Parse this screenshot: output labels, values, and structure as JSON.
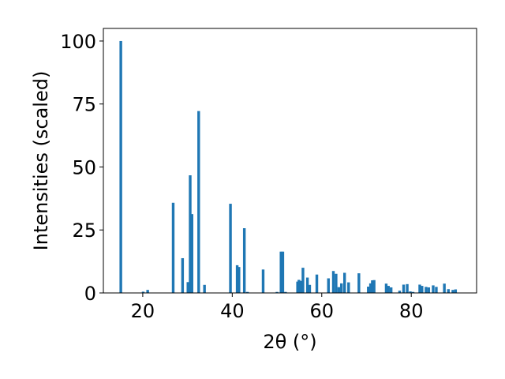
{
  "chart_data": {
    "type": "bar",
    "xlabel": "2θ (°)",
    "ylabel": "Intensities (scaled)",
    "xlim": [
      11.2,
      94.6
    ],
    "ylim": [
      0,
      105
    ],
    "grid": false,
    "legend": "none",
    "bar_width": 0.6,
    "color": "#1f77b4",
    "x_ticks": [
      {
        "value": 20,
        "label": "20"
      },
      {
        "value": 40,
        "label": "40"
      },
      {
        "value": 60,
        "label": "60"
      },
      {
        "value": 80,
        "label": "80"
      }
    ],
    "y_ticks": [
      {
        "value": 0,
        "label": "0"
      },
      {
        "value": 25,
        "label": "25"
      },
      {
        "value": 50,
        "label": "50"
      },
      {
        "value": 75,
        "label": "75"
      },
      {
        "value": 100,
        "label": "100"
      }
    ],
    "series": [
      {
        "x": [
          15.1,
          20.1,
          21.1,
          26.8,
          28.9,
          30.1,
          30.6,
          31.0,
          32.5,
          33.8,
          39.6,
          41.1,
          41.5,
          42.7,
          43.4,
          46.9,
          50.0,
          50.9,
          51.3,
          51.9,
          54.6,
          54.9,
          55.3,
          55.8,
          56.8,
          57.3,
          58.9,
          61.5,
          62.6,
          63.2,
          63.8,
          64.4,
          65.1,
          66.0,
          68.3,
          70.4,
          70.9,
          71.3,
          71.7,
          74.4,
          74.9,
          75.5,
          77.4,
          78.3,
          79.1,
          79.8,
          80.4,
          81.9,
          82.4,
          83.3,
          83.9,
          84.9,
          85.6,
          87.4,
          88.3,
          89.3,
          89.9
        ],
        "values": [
          100.0,
          0.5,
          1.2,
          35.8,
          13.8,
          4.3,
          46.7,
          31.3,
          72.2,
          3.2,
          35.4,
          11.0,
          10.3,
          25.7,
          0.4,
          9.3,
          0.4,
          16.4,
          16.4,
          0.4,
          4.5,
          5.2,
          4.8,
          10.0,
          6.1,
          3.2,
          7.3,
          5.8,
          8.7,
          7.6,
          2.3,
          3.8,
          8.0,
          4.2,
          7.8,
          2.5,
          3.8,
          5.0,
          5.1,
          3.7,
          2.8,
          2.2,
          0.9,
          3.3,
          3.5,
          0.6,
          0.4,
          3.3,
          2.8,
          2.4,
          2.2,
          3.0,
          2.4,
          3.7,
          1.5,
          1.2,
          1.4
        ]
      }
    ]
  }
}
